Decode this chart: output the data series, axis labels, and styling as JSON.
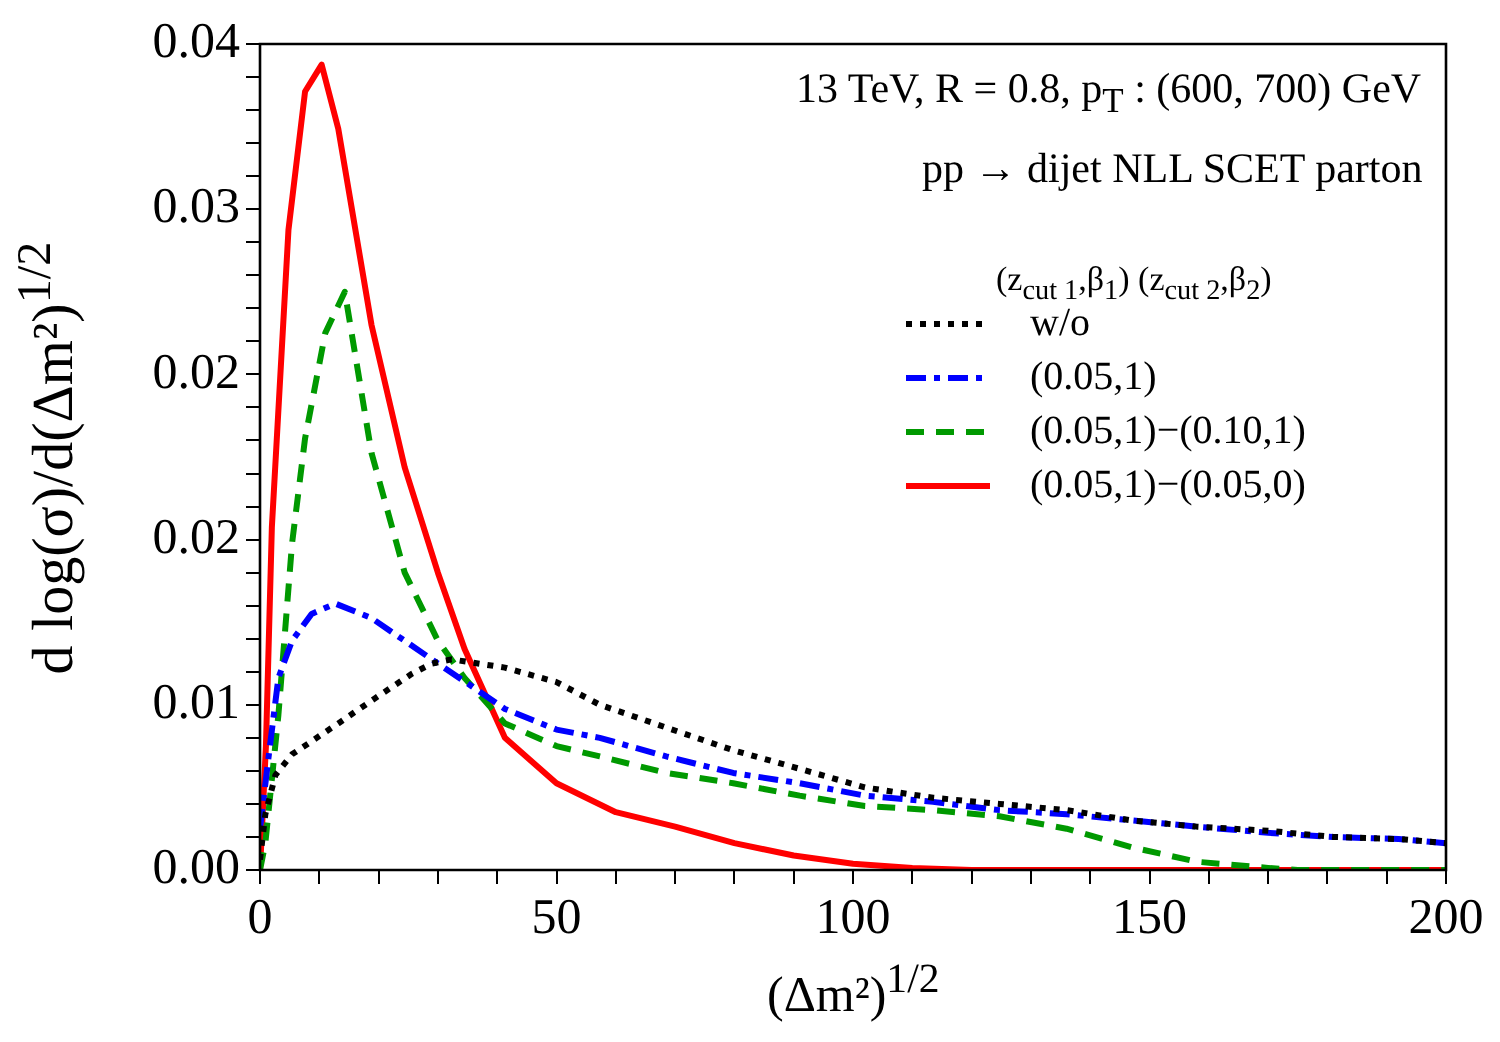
{
  "chart_data": {
    "type": "line",
    "xlabel": "(Δm²)$^{1/2}$",
    "ylabel": "d log(σ)/d(Δm²)$^{1/2}$",
    "legend_title": "(z$_{cut 1}$,β$_{1}$)  (z$_{cut 2}$,β$_{2}$)",
    "annotations": [
      "13 TeV, R = 0.8, p$_{T}$ : (600, 700) GeV",
      "pp → dijet  NLL SCET parton"
    ],
    "xlim": [
      0,
      200
    ],
    "xticks": [
      0,
      {
        "value": 10,
        "label": null
      },
      {
        "value": 20,
        "label": null
      },
      {
        "value": 30,
        "label": null
      },
      {
        "value": 40,
        "label": null
      },
      50,
      {
        "value": 60,
        "label": null
      },
      {
        "value": 70,
        "label": null
      },
      {
        "value": 80,
        "label": null
      },
      {
        "value": 90,
        "label": null
      },
      100,
      {
        "value": 110,
        "label": null
      },
      {
        "value": 120,
        "label": null
      },
      {
        "value": 130,
        "label": null
      },
      {
        "value": 140,
        "label": null
      },
      150,
      {
        "value": 160,
        "label": null
      },
      {
        "value": 170,
        "label": null
      },
      {
        "value": 180,
        "label": null
      },
      {
        "value": 190,
        "label": null
      },
      200
    ],
    "ylim": [
      0,
      0.04
    ],
    "yticks": [
      {
        "value": 0,
        "label": "0.00"
      },
      {
        "value": 0.0016,
        "label": null
      },
      {
        "value": 0.0032,
        "label": null
      },
      {
        "value": 0.0048,
        "label": null
      },
      {
        "value": 0.0064,
        "label": null
      },
      {
        "value": 0.008,
        "label": "0.01"
      },
      {
        "value": 0.0096,
        "label": null
      },
      {
        "value": 0.0112,
        "label": null
      },
      {
        "value": 0.0128,
        "label": null
      },
      {
        "value": 0.0144,
        "label": null
      },
      {
        "value": 0.016,
        "label": "0.02"
      },
      {
        "value": 0.0176,
        "label": null
      },
      {
        "value": 0.0192,
        "label": null
      },
      {
        "value": 0.0208,
        "label": null
      },
      {
        "value": 0.0224,
        "label": null
      },
      {
        "value": 0.024,
        "label": "0.02"
      },
      {
        "value": 0.0256,
        "label": null
      },
      {
        "value": 0.0272,
        "label": null
      },
      {
        "value": 0.0288,
        "label": null
      },
      {
        "value": 0.0304,
        "label": null
      },
      {
        "value": 0.032,
        "label": "0.03"
      },
      {
        "value": 0.0336,
        "label": null
      },
      {
        "value": 0.0352,
        "label": null
      },
      {
        "value": 0.0368,
        "label": null
      },
      {
        "value": 0.0384,
        "label": null
      },
      {
        "value": 0.04,
        "label": "0.04"
      }
    ],
    "grid": false,
    "legend": "top right",
    "marker": "none",
    "series": [
      {
        "name": "w/o",
        "color": "#000000",
        "line_style": "dotted",
        "x": [
          0,
          0.9,
          2.6,
          5.4,
          13.2,
          18.8,
          25.6,
          29,
          32.3,
          41.3,
          50,
          57.3,
          68.5,
          79.8,
          91,
          102,
          113.5,
          124.7,
          136,
          147,
          158,
          170,
          181,
          192,
          200
        ],
        "values": [
          0.0005,
          0.0027,
          0.0046,
          0.0056,
          0.0071,
          0.0082,
          0.0095,
          0.01,
          0.0102,
          0.0098,
          0.0091,
          0.008,
          0.0069,
          0.0058,
          0.0049,
          0.004,
          0.0035,
          0.0032,
          0.0029,
          0.0024,
          0.0021,
          0.0019,
          0.0016,
          0.0015,
          0.0013
        ]
      },
      {
        "name": "(0.05,1)",
        "color": "#0000ff",
        "line_style": "dashdot",
        "x": [
          0,
          1.5,
          3.1,
          5.4,
          8.7,
          12.7,
          18.8,
          24.4,
          30,
          35.7,
          41.3,
          50,
          57.3,
          68.5,
          79.8,
          91,
          102,
          113.5,
          124.7,
          136,
          147,
          158,
          170,
          181,
          192,
          200
        ],
        "values": [
          0.002,
          0.0056,
          0.0093,
          0.0111,
          0.0124,
          0.0129,
          0.0122,
          0.0111,
          0.01,
          0.0089,
          0.0078,
          0.0068,
          0.0064,
          0.0055,
          0.0047,
          0.0042,
          0.0036,
          0.0033,
          0.0029,
          0.0027,
          0.0024,
          0.0021,
          0.0018,
          0.0016,
          0.0015,
          0.0013
        ]
      },
      {
        "name": "(0.05,1)−(0.10,1)",
        "color": "#009900",
        "line_style": "dashed",
        "x": [
          0,
          0.9,
          3.1,
          5.4,
          7.6,
          11,
          14.3,
          18.8,
          24.4,
          30,
          34.5,
          41.3,
          50,
          57.3,
          68.5,
          79.8,
          91,
          102,
          113.5,
          124.7,
          136,
          147,
          158,
          170,
          175,
          200
        ],
        "values": [
          0,
          0.0013,
          0.0075,
          0.0158,
          0.0209,
          0.026,
          0.028,
          0.0202,
          0.0144,
          0.0111,
          0.0093,
          0.0071,
          0.006,
          0.0055,
          0.0047,
          0.0042,
          0.0036,
          0.0031,
          0.0029,
          0.0026,
          0.002,
          0.0011,
          0.0004,
          0.0001,
          0,
          0
        ]
      },
      {
        "name": "(0.05,1)−(0.05,0)",
        "color": "#ff0000",
        "line_style": "solid",
        "x": [
          0,
          1,
          2,
          4.8,
          7.6,
          10.4,
          13.2,
          18.8,
          24.4,
          30,
          34.5,
          41.3,
          50,
          60,
          70,
          80,
          90,
          100,
          110,
          120,
          200
        ],
        "values": [
          0,
          0.006,
          0.0166,
          0.031,
          0.0377,
          0.039,
          0.0359,
          0.0264,
          0.0195,
          0.0144,
          0.0107,
          0.0064,
          0.0042,
          0.0028,
          0.0021,
          0.0013,
          0.0007,
          0.0003,
          0.0001,
          0,
          0
        ]
      }
    ]
  }
}
